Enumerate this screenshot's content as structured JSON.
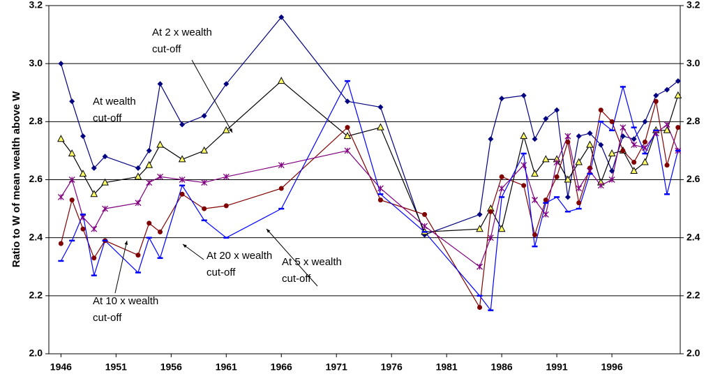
{
  "chart_data": {
    "type": "line",
    "ylabel": "Ratio to W of mean wealth above W",
    "x": [
      1946,
      1947,
      1948,
      1949,
      1950,
      1953,
      1954,
      1955,
      1957,
      1959,
      1961,
      1966,
      1972,
      1975,
      1979,
      1984,
      1985,
      1986,
      1988,
      1989,
      1990,
      1991,
      1992,
      1993,
      1994,
      1995,
      1996,
      1997,
      1998,
      1999,
      2000,
      2001,
      2002
    ],
    "xlim": [
      1944.9,
      2002.2
    ],
    "xticks": [
      1946,
      1951,
      1956,
      1961,
      1966,
      1971,
      1976,
      1981,
      1986,
      1991,
      1996
    ],
    "ylim": [
      2.0,
      3.2
    ],
    "yticks": [
      {
        "value": 2.0,
        "label": "2.0"
      },
      2.2,
      2.4,
      2.6,
      2.8,
      {
        "value": 3.0,
        "label": "3.0"
      },
      3.2
    ],
    "y2lim": [
      2.0,
      3.2
    ],
    "y2ticks": [
      {
        "value": 2.0,
        "label": "2.0"
      },
      2.2,
      2.4,
      2.6,
      2.8,
      {
        "value": 3.0,
        "label": "3.0"
      },
      3.2
    ],
    "grid": true,
    "series": [
      {
        "color": "#000080",
        "line_color": "#000080",
        "marker": "diamond",
        "values": [
          3.0,
          2.87,
          2.75,
          2.64,
          2.68,
          2.64,
          2.7,
          2.93,
          2.79,
          2.82,
          2.93,
          3.16,
          2.87,
          2.85,
          2.41,
          2.48,
          2.74,
          2.88,
          2.89,
          2.74,
          2.81,
          2.84,
          2.54,
          2.75,
          2.76,
          2.72,
          2.63,
          2.75,
          2.74,
          2.8,
          2.89,
          2.91,
          2.94
        ]
      },
      {
        "color": "#ffff66",
        "line_color": "#000000",
        "marker": "triangle",
        "values": [
          2.74,
          2.69,
          2.62,
          2.55,
          2.59,
          2.61,
          2.65,
          2.72,
          2.67,
          2.7,
          2.77,
          2.94,
          2.75,
          2.78,
          2.42,
          2.43,
          2.5,
          2.43,
          2.75,
          2.62,
          2.67,
          2.67,
          2.6,
          2.66,
          2.72,
          2.59,
          2.69,
          2.7,
          2.63,
          2.66,
          2.77,
          2.77,
          2.89
        ]
      },
      {
        "color": "#800000",
        "line_color": "#800000",
        "marker": "circle",
        "values": [
          2.38,
          2.53,
          2.43,
          2.33,
          2.39,
          2.34,
          2.45,
          2.42,
          2.55,
          2.5,
          2.51,
          2.57,
          2.78,
          2.53,
          2.48,
          2.16,
          2.49,
          2.61,
          2.58,
          2.41,
          2.53,
          2.61,
          2.73,
          2.52,
          2.64,
          2.84,
          2.8,
          2.7,
          2.66,
          2.73,
          2.87,
          2.65,
          2.78
        ]
      },
      {
        "color": "#800080",
        "line_color": "#800080",
        "marker": "asterisk",
        "values": [
          2.54,
          2.6,
          2.47,
          2.43,
          2.5,
          2.52,
          2.59,
          2.61,
          2.6,
          2.59,
          2.61,
          2.65,
          2.7,
          2.57,
          2.44,
          2.3,
          2.4,
          2.57,
          2.65,
          2.53,
          2.48,
          2.66,
          2.75,
          2.57,
          2.63,
          2.58,
          2.6,
          2.78,
          2.72,
          2.71,
          2.76,
          2.79,
          2.7
        ]
      },
      {
        "color": "#0000ff",
        "line_color": "#0000ff",
        "marker": "dash",
        "values": [
          2.32,
          2.39,
          2.48,
          2.27,
          2.39,
          2.28,
          2.4,
          2.33,
          2.58,
          2.46,
          2.4,
          2.5,
          2.94,
          2.55,
          2.42,
          2.2,
          2.15,
          2.54,
          2.69,
          2.37,
          2.52,
          2.54,
          2.49,
          2.5,
          2.62,
          2.8,
          2.77,
          2.92,
          2.78,
          2.69,
          2.77,
          2.55,
          2.7
        ]
      }
    ],
    "annotations": [
      {
        "lines": [
          "At 2 x wealth",
          "cut-off"
        ]
      },
      {
        "lines": [
          "At wealth",
          "cut-off"
        ]
      },
      {
        "lines": [
          "At 5 x wealth",
          "cut-off"
        ]
      },
      {
        "lines": [
          "At 20 x wealth",
          "cut-off"
        ]
      },
      {
        "lines": [
          "At 10 x wealth",
          "cut-off"
        ]
      }
    ]
  }
}
